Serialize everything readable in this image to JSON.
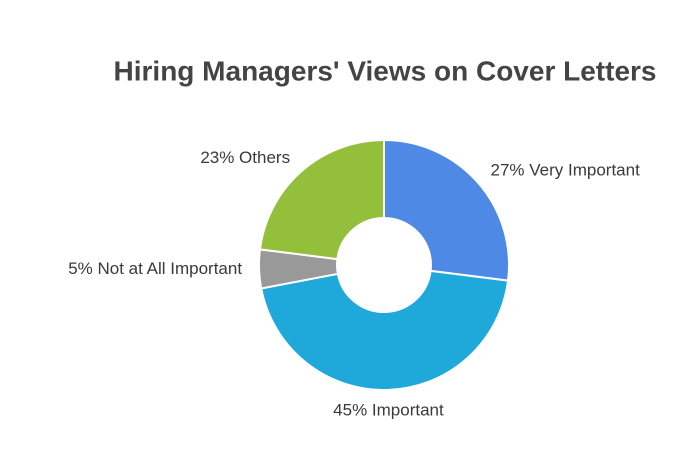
{
  "chart_data": {
    "type": "donut",
    "title": "Hiring Managers' Views on Cover Letters",
    "values": [
      27,
      45,
      5,
      23
    ],
    "value_labels": [
      "27% Very Important",
      "45% Important",
      "5% Not at All Important",
      "23% Others"
    ],
    "colors": [
      "#4f89e6",
      "#1fa9db",
      "#999999",
      "#93bf3b"
    ]
  }
}
